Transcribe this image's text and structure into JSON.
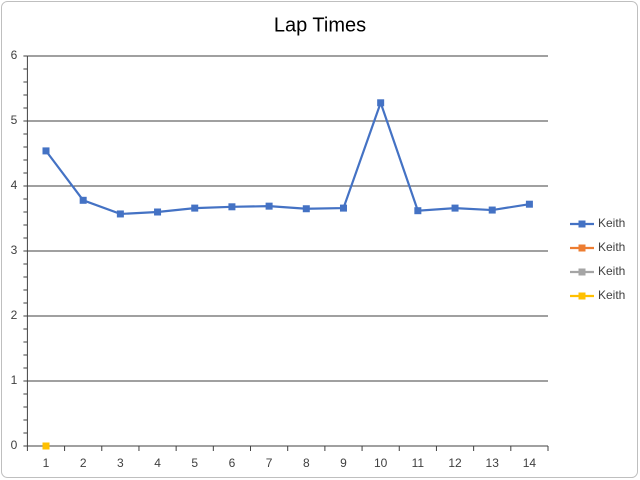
{
  "chart_data": {
    "type": "line",
    "title": "Lap Times",
    "categories": [
      1,
      2,
      3,
      4,
      5,
      6,
      7,
      8,
      9,
      10,
      11,
      12,
      13,
      14
    ],
    "series": [
      {
        "name": "Keith",
        "color": "#4472c4",
        "values": [
          4.54,
          3.78,
          3.57,
          3.6,
          3.66,
          3.68,
          3.69,
          3.65,
          3.66,
          5.28,
          3.62,
          3.66,
          3.63,
          3.72
        ]
      },
      {
        "name": "Keith",
        "color": "#ed7d31",
        "values": [
          null,
          null,
          null,
          null,
          null,
          null,
          null,
          null,
          null,
          null,
          null,
          null,
          null,
          null
        ]
      },
      {
        "name": "Keith",
        "color": "#a5a5a5",
        "values": [
          null,
          null,
          null,
          null,
          null,
          null,
          null,
          null,
          null,
          null,
          null,
          null,
          null,
          null
        ]
      },
      {
        "name": "Keith",
        "color": "#ffc000",
        "values": [
          0,
          null,
          null,
          null,
          null,
          null,
          null,
          null,
          null,
          null,
          null,
          null,
          null,
          null
        ]
      }
    ],
    "ylim": [
      0,
      6
    ],
    "yticks": [
      0,
      1,
      2,
      3,
      4,
      5,
      6
    ],
    "grid": true,
    "legend": "right"
  }
}
